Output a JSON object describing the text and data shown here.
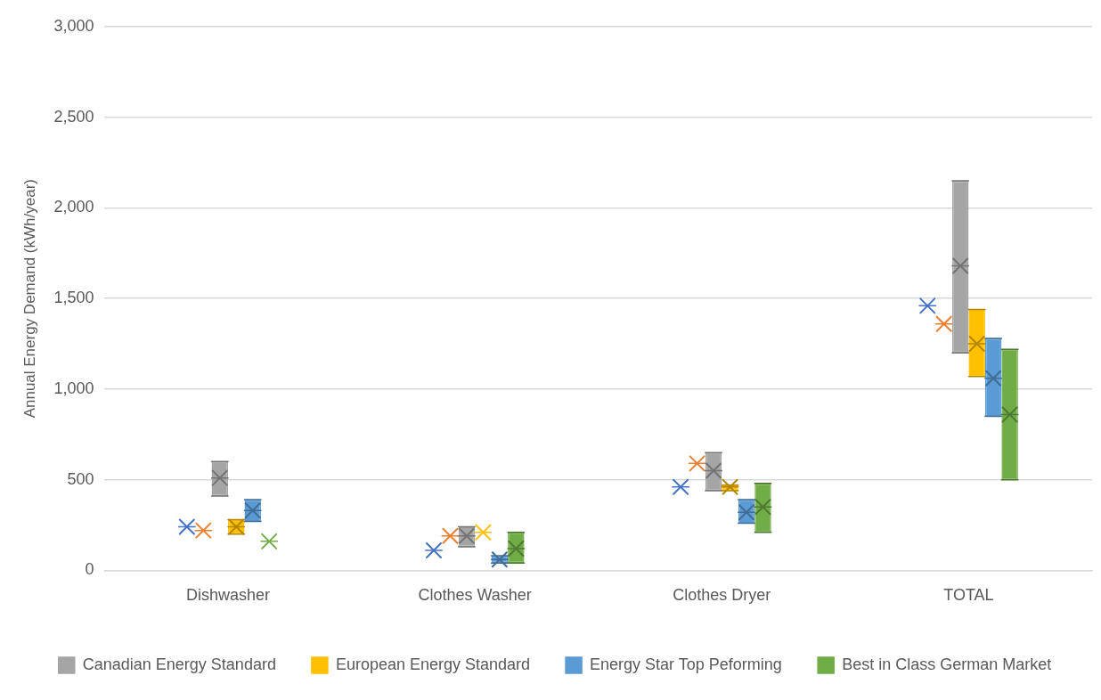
{
  "chart_data": {
    "type": "box",
    "ylabel": "Annual Energy Demand (kWh/year)",
    "categories": [
      "Dishwasher",
      "Clothes Washer",
      "Clothes Dryer",
      "TOTAL"
    ],
    "ylim": [
      0,
      3000
    ],
    "yticks": [
      0,
      {
        "value": 500,
        "label": "500"
      },
      {
        "value": 1000,
        "label": "1,000"
      },
      {
        "value": 1500,
        "label": "1,500"
      },
      {
        "value": 2000,
        "label": "2,000"
      },
      {
        "value": 2500,
        "label": "2,500"
      },
      {
        "value": 3000,
        "label": "3,000"
      }
    ],
    "grid": "y",
    "legend": "bottom",
    "marker": "cross",
    "series": [
      {
        "color": "#4472c4",
        "boxes": [
          {
            "low": 240,
            "q1": 240,
            "median": 240,
            "q3": 240,
            "high": 240,
            "mean": 240
          },
          {
            "low": 110,
            "q1": 110,
            "median": 110,
            "q3": 110,
            "high": 110,
            "mean": 110
          },
          {
            "low": 460,
            "q1": 460,
            "median": 460,
            "q3": 460,
            "high": 460,
            "mean": 460
          },
          {
            "low": 1460,
            "q1": 1460,
            "median": 1460,
            "q3": 1460,
            "high": 1460,
            "mean": 1460
          }
        ]
      },
      {
        "color": "#ed7d31",
        "boxes": [
          {
            "low": 220,
            "q1": 220,
            "median": 220,
            "q3": 220,
            "high": 220,
            "mean": 220
          },
          {
            "low": 190,
            "q1": 190,
            "median": 190,
            "q3": 190,
            "high": 190,
            "mean": 190
          },
          {
            "low": 590,
            "q1": 590,
            "median": 590,
            "q3": 590,
            "high": 590,
            "mean": 590
          },
          {
            "low": 1360,
            "q1": 1360,
            "median": 1360,
            "q3": 1360,
            "high": 1360,
            "mean": 1360
          }
        ]
      },
      {
        "name": "Canadian Energy Standard",
        "color": "#a5a5a5",
        "boxes": [
          {
            "low": 410,
            "q1": 410,
            "median": 510,
            "q3": 600,
            "high": 600,
            "mean": 510
          },
          {
            "low": 130,
            "q1": 130,
            "median": 190,
            "q3": 240,
            "high": 240,
            "mean": 190
          },
          {
            "low": 440,
            "q1": 440,
            "median": 550,
            "q3": 650,
            "high": 650,
            "mean": 550
          },
          {
            "low": 1200,
            "q1": 1200,
            "median": 1680,
            "q3": 2150,
            "high": 2150,
            "mean": 1680
          }
        ]
      },
      {
        "name": "European Energy Standard",
        "color": "#ffc000",
        "boxes": [
          {
            "low": 200,
            "q1": 200,
            "median": 240,
            "q3": 280,
            "high": 280,
            "mean": 240
          },
          {
            "low": 210,
            "q1": 210,
            "median": 210,
            "q3": 210,
            "high": 210,
            "mean": 210
          },
          {
            "low": 440,
            "q1": 440,
            "median": 460,
            "q3": 470,
            "high": 470,
            "mean": 460
          },
          {
            "low": 1070,
            "q1": 1070,
            "median": 1250,
            "q3": 1440,
            "high": 1440,
            "mean": 1250
          }
        ]
      },
      {
        "name": "Energy Star Top Peforming",
        "color": "#5b9bd5",
        "boxes": [
          {
            "low": 270,
            "q1": 270,
            "median": 330,
            "q3": 390,
            "high": 390,
            "mean": 330
          },
          {
            "low": 40,
            "q1": 40,
            "median": 60,
            "q3": 80,
            "high": 80,
            "mean": 60
          },
          {
            "low": 260,
            "q1": 260,
            "median": 320,
            "q3": 390,
            "high": 390,
            "mean": 320
          },
          {
            "low": 850,
            "q1": 850,
            "median": 1060,
            "q3": 1280,
            "high": 1280,
            "mean": 1060
          }
        ]
      },
      {
        "name": "Best in Class German Market",
        "color": "#70ad47",
        "boxes": [
          {
            "low": 160,
            "q1": 160,
            "median": 160,
            "q3": 160,
            "high": 160,
            "mean": 160
          },
          {
            "low": 40,
            "q1": 40,
            "median": 120,
            "q3": 210,
            "high": 210,
            "mean": 120
          },
          {
            "low": 210,
            "q1": 210,
            "median": 350,
            "q3": 480,
            "high": 480,
            "mean": 350
          },
          {
            "low": 500,
            "q1": 500,
            "median": 860,
            "q3": 1220,
            "high": 1220,
            "mean": 860
          }
        ]
      }
    ]
  }
}
